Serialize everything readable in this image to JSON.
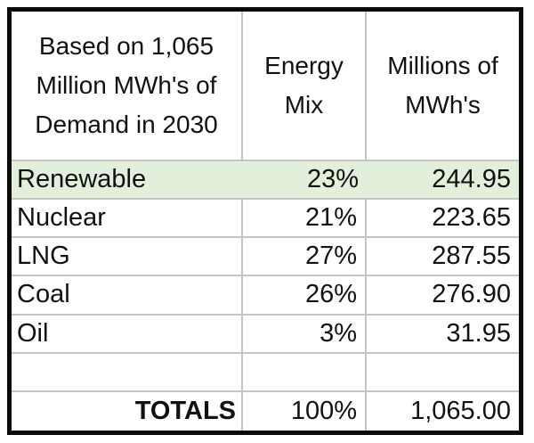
{
  "table": {
    "header": {
      "demand_basis": "Based on 1,065\nMillion MWh's of\nDemand in 2030",
      "energy_mix": "Energy\nMix",
      "millions_mwh": "Millions of\nMWh's"
    },
    "rows": [
      {
        "source": "Renewable",
        "mix": "23%",
        "mwh": "244.95",
        "highlighted": true
      },
      {
        "source": "Nuclear",
        "mix": "21%",
        "mwh": "223.65",
        "highlighted": false
      },
      {
        "source": "LNG",
        "mix": "27%",
        "mwh": "287.55",
        "highlighted": false
      },
      {
        "source": "Coal",
        "mix": "26%",
        "mwh": "276.90",
        "highlighted": false
      },
      {
        "source": "Oil",
        "mix": "3%",
        "mwh": "31.95",
        "highlighted": false
      },
      {
        "source": "",
        "mix": "",
        "mwh": "",
        "highlighted": false
      }
    ],
    "totals": {
      "label": "TOTALS",
      "mix": "100%",
      "mwh": "1,065.00"
    },
    "colors": {
      "highlight_row": "#e2efda",
      "gridline": "#c4c4c4",
      "outer_border": "#0b0b0b",
      "text": "#111111"
    }
  }
}
